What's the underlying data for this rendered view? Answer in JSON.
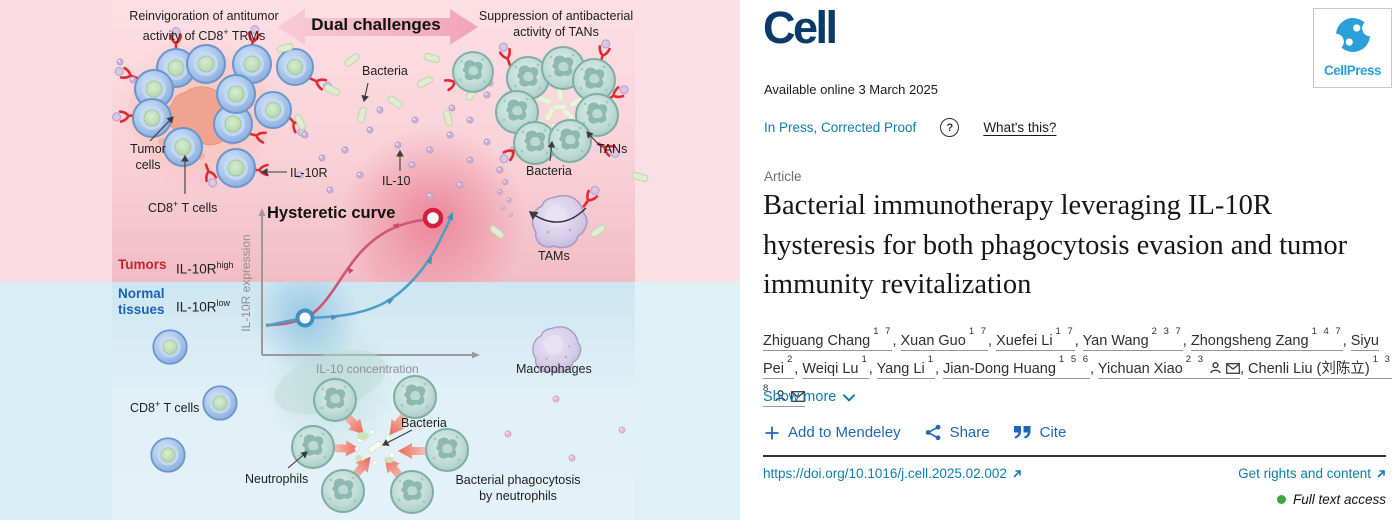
{
  "ga": {
    "top_left": {
      "line1": "Reinvigoration of antitumor",
      "line2_pre": "activity of CD8",
      "sup": "+",
      "line2_post": " TRMs"
    },
    "banner_label": "Dual challenges",
    "top_right": {
      "line1": "Suppression of antibacterial",
      "line2": "activity of TANs"
    },
    "bacteria_top": "Bacteria",
    "tumor_line1": "Tumor",
    "tumor_line2": "cells",
    "cd8_pre": "CD8",
    "cd8_sup": "+",
    "cd8_post": " T cells",
    "il10r": "IL-10R",
    "il10": "IL-10",
    "tans": "TANs",
    "bacteria_right": "Bacteria",
    "tams": "TAMs",
    "plot": {
      "title": "Hysteretic curve",
      "ylabel": "IL-10R expression",
      "xlabel": "IL-10 concentration",
      "tumors": "Tumors",
      "il10r_high_pre": "IL-10R",
      "il10r_high_sup": "high",
      "normal_line1": "Normal",
      "normal_line2": "tissues",
      "il10r_low_pre": "IL-10R",
      "il10r_low_sup": "low"
    },
    "macrophages": "Macrophages",
    "neutrophils": "Neutrophils",
    "bacteria_bottom": "Bacteria",
    "phago_line1": "Bacterial phagocytosis",
    "phago_line2": "by neutrophils"
  },
  "article": {
    "journal": "Cell",
    "publisher": "CellPress",
    "available_online": "Available online 3 March 2025",
    "in_press": "In Press, Corrected Proof",
    "help": "?",
    "whats_this": "What's this?",
    "article_type": "Article",
    "title": "Bacterial immunotherapy leveraging IL-10R hysteresis for both phagocytosis evasion and tumor immunity revitalization",
    "authors": [
      {
        "name": "Zhiguang Chang",
        "sups": "1 7"
      },
      {
        "name": "Xuan Guo",
        "sups": "1 7"
      },
      {
        "name": "Xuefei Li",
        "sups": "1 7"
      },
      {
        "name": "Yan Wang",
        "sups": "2 3 7"
      },
      {
        "name": "Zhongsheng Zang",
        "sups": "1 4 7"
      },
      {
        "name": "Siyu Pei",
        "sups": "2"
      },
      {
        "name": "Weiqi Lu",
        "sups": "1"
      },
      {
        "name": "Yang Li",
        "sups": "1"
      },
      {
        "name": "Jian-Dong Huang",
        "sups": "1 5 6"
      },
      {
        "name": "Yichuan Xiao",
        "sups": "2 3",
        "person": true,
        "mail": true
      },
      {
        "name": "Chenli Liu (刘陈立)",
        "sups": "1 3 8",
        "person": true,
        "mail": true
      }
    ],
    "author_separator": ", ",
    "show_more": "Show more",
    "plus": "+",
    "add_to_mendeley": "Add to Mendeley",
    "share": "Share",
    "cite": "Cite",
    "doi": "https://doi.org/10.1016/j.cell.2025.02.002",
    "rights": "Get rights and content",
    "access": "Full text access"
  },
  "colors": {
    "teal_link": "#0f7cab",
    "action_blue": "#2166b5",
    "cell_navy": "#0a3a69",
    "cellpress_blue": "#2aa0da",
    "open_access_green": "#3aa83f",
    "tumors_red": "#c8242e",
    "normal_blue": "#1a63b5",
    "curve_pink": "#cf5576",
    "curve_blue": "#4f9ec6"
  }
}
